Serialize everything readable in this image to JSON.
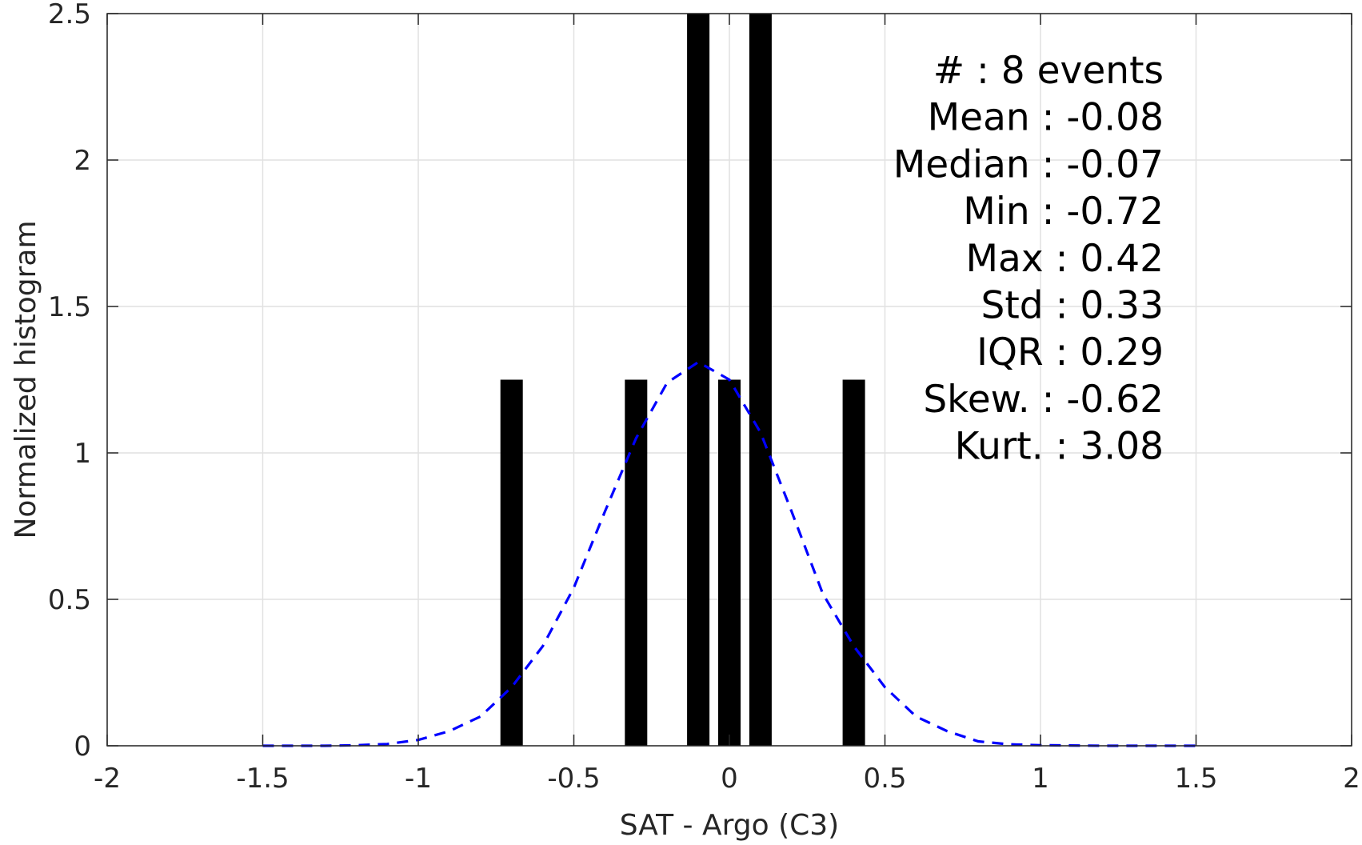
{
  "chart_data": {
    "type": "bar",
    "xlabel": "SAT - Argo (C3)",
    "ylabel": "Normalized histogram",
    "xlim": [
      -2,
      2
    ],
    "ylim": [
      0,
      2.5
    ],
    "xticks": [
      "-2",
      "-1.5",
      "-1",
      "-0.5",
      "0",
      "0.5",
      "1",
      "1.5",
      "2"
    ],
    "yticks": [
      "0",
      "0.5",
      "1",
      "1.5",
      "2",
      "2.5"
    ],
    "grid": true,
    "bar_color": "#000000",
    "curve_color": "#0000ff",
    "bars": [
      {
        "x": -0.7,
        "value": 1.25
      },
      {
        "x": -0.3,
        "value": 1.25
      },
      {
        "x": -0.1,
        "value": 2.5
      },
      {
        "x": 0.0,
        "value": 1.25
      },
      {
        "x": 0.1,
        "value": 2.5
      },
      {
        "x": 0.4,
        "value": 1.25
      }
    ],
    "fit_curve": {
      "style": "dashed",
      "x": [
        -1.5,
        -1.3,
        -1.2,
        -1.1,
        -1.0,
        -0.9,
        -0.8,
        -0.7,
        -0.6,
        -0.5,
        -0.4,
        -0.3,
        -0.2,
        -0.1,
        0.0,
        0.1,
        0.2,
        0.3,
        0.4,
        0.5,
        0.6,
        0.7,
        0.8,
        0.9,
        1.0,
        1.2,
        1.5
      ],
      "y": [
        0.0,
        0.0,
        0.002,
        0.006,
        0.02,
        0.05,
        0.1,
        0.2,
        0.34,
        0.54,
        0.8,
        1.05,
        1.24,
        1.31,
        1.25,
        1.07,
        0.8,
        0.52,
        0.34,
        0.2,
        0.1,
        0.05,
        0.015,
        0.005,
        0.002,
        0.0,
        0.0
      ]
    },
    "annotations": [
      "#  : 8 events",
      "Mean : -0.08",
      "Median : -0.07",
      "Min : -0.72",
      "Max : 0.42",
      "Std : 0.33",
      "IQR : 0.29",
      "Skew. : -0.62",
      "Kurt. : 3.08"
    ]
  }
}
